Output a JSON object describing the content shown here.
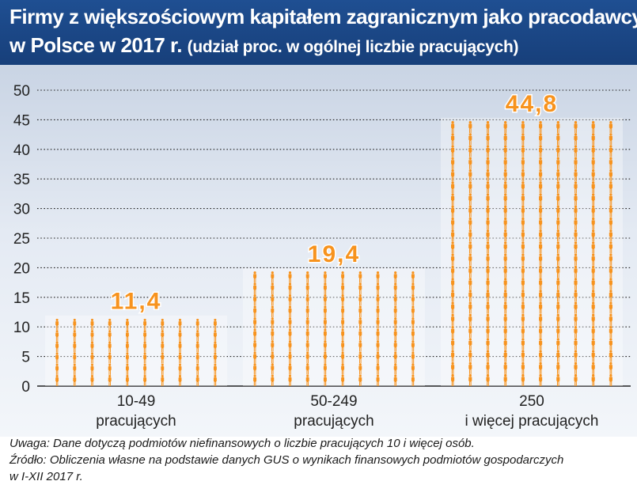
{
  "header": {
    "title_line1": "Firmy z większościowym kapitałem zagranicznym jako pracodawcy",
    "title_line2": "w Polsce w 2017 r.",
    "subtitle": "(udział proc. w ogólnej liczbie pracujących)"
  },
  "notes": {
    "note": "Uwaga: Dane dotyczą podmiotów niefinansowych o liczbie pracujących 10 i więcej osób.",
    "source_line1": "Źródło: Obliczenia własne na podstawie danych GUS o wynikach finansowych podmiotów gospodarczych",
    "source_line2": "w I-XII 2017 r."
  },
  "colors": {
    "header_bg": "#1f4f92",
    "figure": "#f7931e",
    "grid": "#222222",
    "axis_text": "#222222"
  },
  "chart_data": {
    "type": "bar",
    "title": "Firmy z większościowym kapitałem zagranicznym jako pracodawcy w Polsce w 2017 r.",
    "ylabel": "udział proc. w ogólnej liczbie pracujących",
    "ylim": [
      0,
      50
    ],
    "yticks": [
      0,
      5,
      10,
      15,
      20,
      25,
      30,
      35,
      40,
      45,
      50
    ],
    "grid": true,
    "categories": [
      [
        "10-49",
        "pracujących"
      ],
      [
        "50-249",
        "pracujących"
      ],
      [
        "250",
        "i więcej pracujących"
      ]
    ],
    "values": [
      11.4,
      19.4,
      44.8
    ],
    "value_labels": [
      "11,4",
      "19,4",
      "44,8"
    ]
  }
}
